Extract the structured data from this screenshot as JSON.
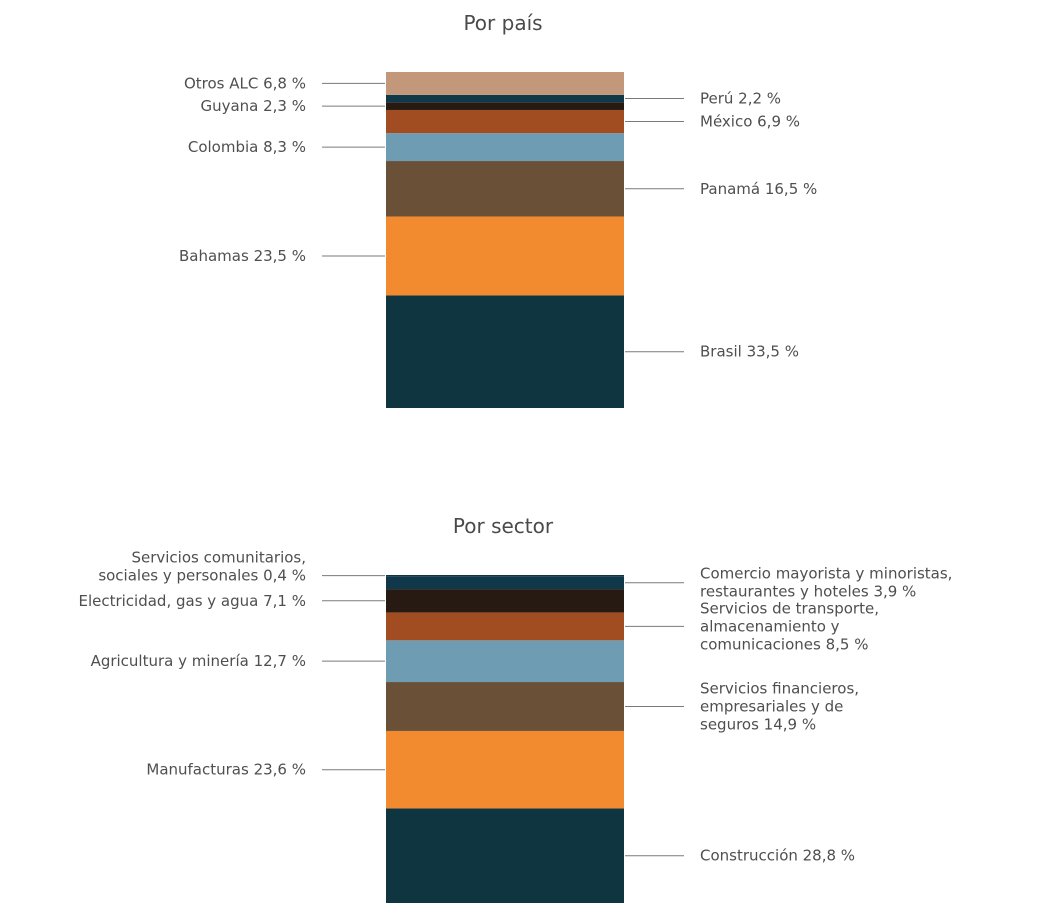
{
  "chart_data": [
    {
      "type": "bar",
      "stacked": true,
      "title": "Por país",
      "unit": "%",
      "segments": [
        {
          "name": "Brasil",
          "label": "Brasil 33,5 %",
          "value": 33.5,
          "color": "#0e3540",
          "side": "right"
        },
        {
          "name": "Bahamas",
          "label": "Bahamas 23,5 %",
          "value": 23.5,
          "color": "#f28b30",
          "side": "left"
        },
        {
          "name": "Panamá",
          "label": "Panamá 16,5 %",
          "value": 16.5,
          "color": "#6b5038",
          "side": "right"
        },
        {
          "name": "Colombia",
          "label": "Colombia 8,3 %",
          "value": 8.3,
          "color": "#6e9db3",
          "side": "left"
        },
        {
          "name": "México",
          "label": "México 6,9 %",
          "value": 6.9,
          "color": "#a24d21",
          "side": "right"
        },
        {
          "name": "Guyana",
          "label": "Guyana 2,3 %",
          "value": 2.3,
          "color": "#261a12",
          "side": "left"
        },
        {
          "name": "Perú",
          "label": "Perú 2,2 %",
          "value": 2.2,
          "color": "#10384a",
          "side": "right"
        },
        {
          "name": "Otros ALC",
          "label": "Otros ALC 6,8 %",
          "value": 6.8,
          "color": "#c2977a",
          "side": "left"
        }
      ]
    },
    {
      "type": "bar",
      "stacked": true,
      "title": "Por sector",
      "unit": "%",
      "segments": [
        {
          "name": "Construcción",
          "label": "Construcción 28,8 %",
          "value": 28.8,
          "color": "#0e3540",
          "side": "right"
        },
        {
          "name": "Manufacturas",
          "label": "Manufacturas 23,6 %",
          "value": 23.6,
          "color": "#f28b30",
          "side": "left"
        },
        {
          "name": "Servicios financieros, empresariales y de seguros",
          "label": "Servicios financieros,\nempresariales y de\nseguros 14,9 %",
          "value": 14.9,
          "color": "#6b5038",
          "side": "right"
        },
        {
          "name": "Agricultura y minería",
          "label": "Agricultura y minería 12,7 %",
          "value": 12.7,
          "color": "#6e9db3",
          "side": "left"
        },
        {
          "name": "Servicios de transporte, almacenamiento y comunicaciones",
          "label": "Servicios de transporte,\nalmacenamiento y\ncomunicaciones 8,5 %",
          "value": 8.5,
          "color": "#a24d21",
          "side": "right"
        },
        {
          "name": "Electricidad, gas y agua",
          "label": "Electricidad, gas y agua 7,1 %",
          "value": 7.1,
          "color": "#261a12",
          "side": "left"
        },
        {
          "name": "Comercio mayorista y minoristas, restaurantes y hoteles",
          "label": "Comercio mayorista y minoristas,\nrestaurantes y hoteles 3,9 %",
          "value": 3.9,
          "color": "#10384a",
          "side": "right"
        },
        {
          "name": "Servicios comunitarios, sociales y personales",
          "label": "Servicios comunitarios,\nsociales y personales 0,4 %",
          "value": 0.4,
          "color": "#0e3540",
          "side": "left"
        }
      ]
    }
  ]
}
